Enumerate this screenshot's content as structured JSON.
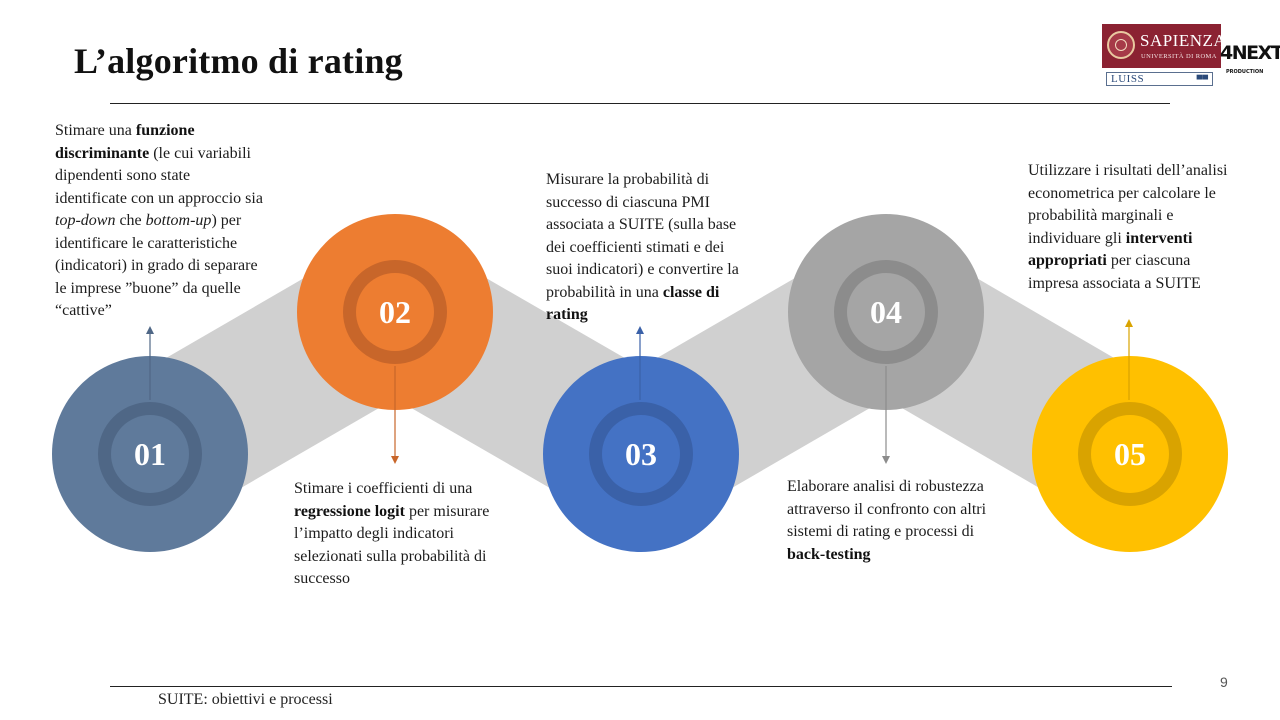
{
  "slide": {
    "title": "L’algoritmo di rating",
    "page_number": "9",
    "footer": "SUITE: obiettivi e processi"
  },
  "logos": {
    "sapienza_name": "SAPIENZA",
    "sapienza_sub": "UNIVERSITÀ DI ROMA",
    "luiss": "LUISS",
    "next_main": "4NEXT",
    "next_sub": "PRODUCTION"
  },
  "steps": [
    {
      "number": "01",
      "color": "#5f7a9b",
      "ring": "#4f6786",
      "inner": "#5f7a9b",
      "segments": [
        {
          "t": "Stimare una ",
          "s": "normal"
        },
        {
          "t": "funzione discriminante",
          "s": "bold"
        },
        {
          "t": " (le cui variabili dipendenti sono state identificate con un approccio sia ",
          "s": "normal"
        },
        {
          "t": "top-down",
          "s": "italic"
        },
        {
          "t": " che ",
          "s": "normal"
        },
        {
          "t": "bottom-up",
          "s": "italic"
        },
        {
          "t": ") per identificare le caratteristiche (indicatori) in grado di separare le imprese ”buone” da quelle “cattive”",
          "s": "normal"
        }
      ]
    },
    {
      "number": "02",
      "color": "#ed7d31",
      "ring": "#c8662a",
      "inner": "#ed7d31",
      "segments": [
        {
          "t": "Stimare i coefficienti di una ",
          "s": "normal"
        },
        {
          "t": "regressione logit",
          "s": "bold"
        },
        {
          "t": " per misurare l’impatto degli indicatori selezionati sulla probabilità di successo",
          "s": "normal"
        }
      ]
    },
    {
      "number": "03",
      "color": "#4472c4",
      "ring": "#3a61a8",
      "inner": "#4472c4",
      "segments": [
        {
          "t": "Misurare la probabilità di successo di ciascuna PMI associata a SUITE (sulla base dei coefficienti stimati e dei suoi indicatori) e convertire la probabilità in una ",
          "s": "normal"
        },
        {
          "t": "classe di rating",
          "s": "bold"
        }
      ]
    },
    {
      "number": "04",
      "color": "#a5a5a5",
      "ring": "#8c8c8c",
      "inner": "#a5a5a5",
      "segments": [
        {
          "t": "Elaborare analisi di robustezza attraverso il confronto con altri sistemi di rating e processi di ",
          "s": "normal"
        },
        {
          "t": "back-testing",
          "s": "bold"
        }
      ]
    },
    {
      "number": "05",
      "color": "#ffc000",
      "ring": "#d9a300",
      "inner": "#ffc000",
      "segments": [
        {
          "t": "Utilizzare i risultati dell’analisi econometrica per calcolare le probabilità marginali e individuare gli ",
          "s": "normal"
        },
        {
          "t": "interventi appropriati",
          "s": "bold"
        },
        {
          "t": " per ciascuna impresa associata a SUITE",
          "s": "normal"
        }
      ]
    }
  ],
  "connector_color": "#d0d0d0"
}
